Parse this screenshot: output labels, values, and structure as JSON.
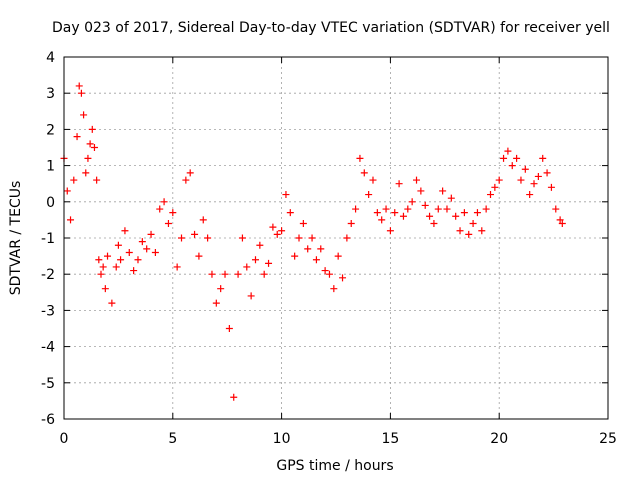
{
  "chart_data": {
    "type": "scatter",
    "title": "Day 023 of 2017, Sidereal Day-to-day VTEC variation (SDTVAR) for receiver yell",
    "xlabel": "GPS time / hours",
    "ylabel": "SDTVAR / TECUs",
    "xlim": [
      0,
      25
    ],
    "ylim": [
      -6,
      4
    ],
    "x_ticks": [
      0,
      5,
      10,
      15,
      20,
      25
    ],
    "y_ticks": [
      -6,
      -5,
      -4,
      -3,
      -2,
      -1,
      0,
      1,
      2,
      3,
      4
    ],
    "x_tick_labels": [
      "0",
      "5",
      "10",
      "15",
      "20",
      "25"
    ],
    "y_tick_labels": [
      "-6",
      "-5",
      "-4",
      "-3",
      "-2",
      "-1",
      "0",
      "1",
      "2",
      "3",
      "4"
    ],
    "grid": true,
    "marker": "+",
    "marker_color": "#ff0000",
    "series": [
      {
        "name": "SDTVAR",
        "x": [
          0.0,
          0.15,
          0.3,
          0.45,
          0.6,
          0.7,
          0.8,
          0.9,
          1.0,
          1.1,
          1.2,
          1.3,
          1.4,
          1.5,
          1.6,
          1.7,
          1.8,
          1.9,
          2.0,
          2.2,
          2.4,
          2.5,
          2.6,
          2.8,
          3.0,
          3.2,
          3.4,
          3.6,
          3.8,
          4.0,
          4.2,
          4.4,
          4.6,
          4.8,
          5.0,
          5.2,
          5.4,
          5.6,
          5.8,
          6.0,
          6.2,
          6.4,
          6.6,
          6.8,
          7.0,
          7.2,
          7.4,
          7.6,
          7.8,
          8.0,
          8.2,
          8.4,
          8.6,
          8.8,
          9.0,
          9.2,
          9.4,
          9.6,
          9.8,
          10.0,
          10.2,
          10.4,
          10.6,
          10.8,
          11.0,
          11.2,
          11.4,
          11.6,
          11.8,
          12.0,
          12.2,
          12.4,
          12.6,
          12.8,
          13.0,
          13.2,
          13.4,
          13.6,
          13.8,
          14.0,
          14.2,
          14.4,
          14.6,
          14.8,
          15.0,
          15.2,
          15.4,
          15.6,
          15.8,
          16.0,
          16.2,
          16.4,
          16.6,
          16.8,
          17.0,
          17.2,
          17.4,
          17.6,
          17.8,
          18.0,
          18.2,
          18.4,
          18.6,
          18.8,
          19.0,
          19.2,
          19.4,
          19.6,
          19.8,
          20.0,
          20.2,
          20.4,
          20.6,
          20.8,
          21.0,
          21.2,
          21.4,
          21.6,
          21.8,
          22.0,
          22.2,
          22.4,
          22.6,
          22.8,
          22.9
        ],
        "y": [
          1.2,
          0.3,
          -0.5,
          0.6,
          1.8,
          3.2,
          3.0,
          2.4,
          0.8,
          1.2,
          1.6,
          2.0,
          1.5,
          0.6,
          -1.6,
          -2.0,
          -1.8,
          -2.4,
          -1.5,
          -2.8,
          -1.8,
          -1.2,
          -1.6,
          -0.8,
          -1.4,
          -1.9,
          -1.6,
          -1.1,
          -1.3,
          -0.9,
          -1.4,
          -0.2,
          0.0,
          -0.6,
          -0.3,
          -1.8,
          -1.0,
          0.6,
          0.8,
          -0.9,
          -1.5,
          -0.5,
          -1.0,
          -2.0,
          -2.8,
          -2.4,
          -2.0,
          -3.5,
          -5.4,
          -2.0,
          -1.0,
          -1.8,
          -2.6,
          -1.6,
          -1.2,
          -2.0,
          -1.7,
          -0.7,
          -0.9,
          -0.8,
          0.2,
          -0.3,
          -1.5,
          -1.0,
          -0.6,
          -1.3,
          -1.0,
          -1.6,
          -1.3,
          -1.9,
          -2.0,
          -2.4,
          -1.5,
          -2.1,
          -1.0,
          -0.6,
          -0.2,
          1.2,
          0.8,
          0.2,
          0.6,
          -0.3,
          -0.5,
          -0.2,
          -0.8,
          -0.3,
          0.5,
          -0.4,
          -0.2,
          0.0,
          0.6,
          0.3,
          -0.1,
          -0.4,
          -0.6,
          -0.2,
          0.3,
          -0.2,
          0.1,
          -0.4,
          -0.8,
          -0.3,
          -0.9,
          -0.6,
          -0.3,
          -0.8,
          -0.2,
          0.2,
          0.4,
          0.6,
          1.2,
          1.4,
          1.0,
          1.2,
          0.6,
          0.9,
          0.2,
          0.5,
          0.7,
          1.2,
          0.8,
          0.4,
          -0.2,
          -0.5,
          -0.6
        ]
      }
    ]
  }
}
